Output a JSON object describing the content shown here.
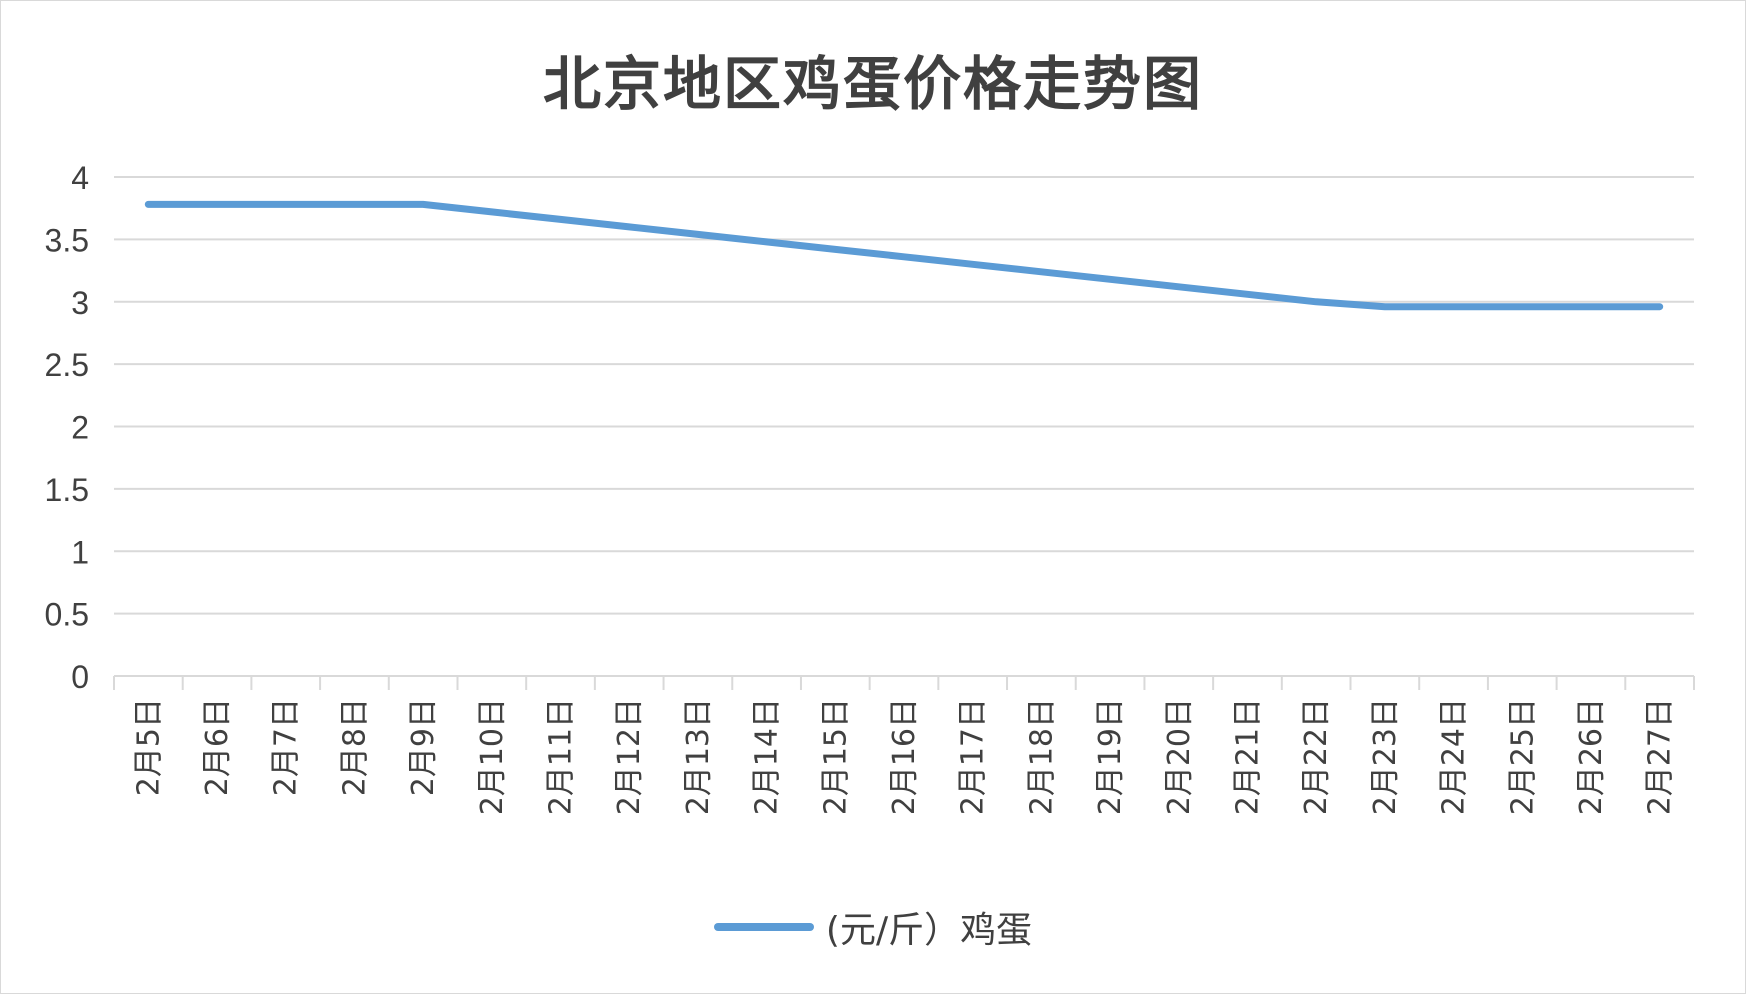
{
  "chart_data": {
    "type": "line",
    "title": "北京地区鸡蛋价格走势图",
    "categories": [
      "2月5日",
      "2月6日",
      "2月7日",
      "2月8日",
      "2月9日",
      "2月10日",
      "2月11日",
      "2月12日",
      "2月13日",
      "2月14日",
      "2月15日",
      "2月16日",
      "2月17日",
      "2月18日",
      "2月19日",
      "2月20日",
      "2月21日",
      "2月22日",
      "2月23日",
      "2月24日",
      "2月25日",
      "2月26日",
      "2月27日"
    ],
    "series": [
      {
        "name": "(元/斤）鸡蛋",
        "color": "#5b9bd5",
        "values": [
          3.78,
          3.78,
          3.78,
          3.78,
          3.78,
          3.72,
          3.66,
          3.6,
          3.54,
          3.48,
          3.42,
          3.36,
          3.3,
          3.24,
          3.18,
          3.12,
          3.06,
          3.0,
          2.96,
          2.96,
          2.96,
          2.96,
          2.96
        ]
      }
    ],
    "ylim": [
      0,
      4
    ],
    "yticks": [
      "0",
      "0.5",
      "1",
      "1.5",
      "2",
      "2.5",
      "3",
      "3.5",
      "4"
    ],
    "grid": true,
    "legend_position": "bottom",
    "colors": {
      "line": "#5b9bd5",
      "grid": "#d9d9d9",
      "text": "#404040"
    }
  }
}
